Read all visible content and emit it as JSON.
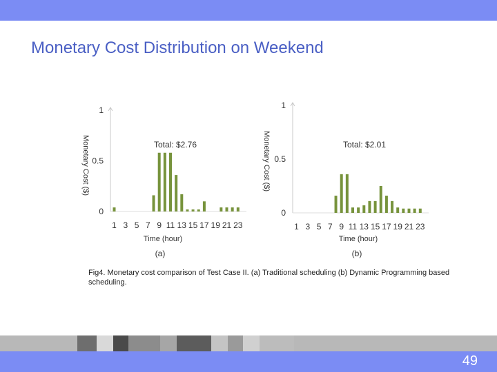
{
  "slide": {
    "title": "Monetary Cost Distribution on Weekend",
    "caption": "Fig4. Monetary cost comparison of Test Case II. (a) Traditional scheduling (b) Dynamic Programming based scheduling.",
    "page_number": "49",
    "bar_color": "#77933C",
    "banner_color": "#7B8CF4",
    "title_color": "#4A5FC4"
  },
  "chart_data": [
    {
      "type": "bar",
      "panel_label": "(a)",
      "annotation": "Total: $2.76",
      "xlabel": "Time (hour)",
      "ylabel": "Monetary Cost ($)",
      "ylim": [
        0,
        1
      ],
      "y_ticks": [
        "0",
        "0.5",
        "1"
      ],
      "x_ticks": [
        "1",
        "3",
        "5",
        "7",
        "9",
        "11",
        "13",
        "15",
        "17",
        "19",
        "21",
        "23"
      ],
      "categories": [
        1,
        2,
        3,
        4,
        5,
        6,
        7,
        8,
        9,
        10,
        11,
        12,
        13,
        14,
        15,
        16,
        17,
        18,
        19,
        20,
        21,
        22,
        23,
        24
      ],
      "values": [
        0.04,
        0,
        0,
        0,
        0,
        0,
        0,
        0.16,
        0.58,
        0.58,
        0.58,
        0.36,
        0.17,
        0.02,
        0.02,
        0.02,
        0.1,
        0,
        0,
        0.04,
        0.04,
        0.04,
        0.04,
        0
      ]
    },
    {
      "type": "bar",
      "panel_label": "(b)",
      "annotation": "Total: $2.01",
      "xlabel": "Time (hour)",
      "ylabel": "Monetary Cost ($)",
      "ylim": [
        0,
        1
      ],
      "y_ticks": [
        "0",
        "0.5",
        "1"
      ],
      "x_ticks": [
        "1",
        "3",
        "5",
        "7",
        "9",
        "11",
        "13",
        "15",
        "17",
        "19",
        "21",
        "23"
      ],
      "categories": [
        1,
        2,
        3,
        4,
        5,
        6,
        7,
        8,
        9,
        10,
        11,
        12,
        13,
        14,
        15,
        16,
        17,
        18,
        19,
        20,
        21,
        22,
        23,
        24
      ],
      "values": [
        0,
        0,
        0,
        0,
        0,
        0,
        0,
        0.16,
        0.36,
        0.36,
        0.05,
        0.05,
        0.07,
        0.11,
        0.11,
        0.25,
        0.16,
        0.11,
        0.05,
        0.04,
        0.04,
        0.04,
        0.04,
        0
      ]
    }
  ]
}
